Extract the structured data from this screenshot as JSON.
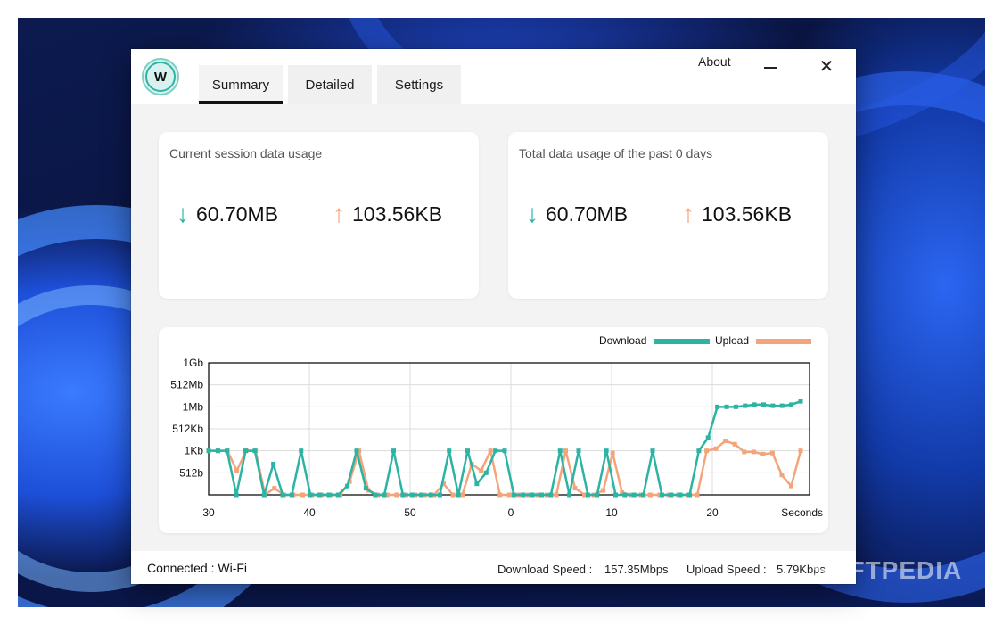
{
  "app": {
    "logo_letter": "W",
    "tabs": [
      {
        "label": "Summary",
        "active": true
      },
      {
        "label": "Detailed",
        "active": false
      },
      {
        "label": "Settings",
        "active": false
      }
    ],
    "about_label": "About",
    "minimize_icon": "minimize-icon",
    "close_icon": "close-icon",
    "close_glyph": "✕"
  },
  "cards": {
    "session": {
      "title": "Current session data usage",
      "download": "60.70MB",
      "upload": "103.56KB"
    },
    "total": {
      "title": "Total data usage of the past 0 days",
      "download": "60.70MB",
      "upload": "103.56KB"
    },
    "arrow_down_glyph": "↓",
    "arrow_up_glyph": "↑"
  },
  "chart_data": {
    "type": "line",
    "legend_placement": "top-right",
    "grid": true,
    "x_tick_labels": [
      "30",
      "40",
      "50",
      "0",
      "10",
      "20"
    ],
    "x_axis_label": "Seconds",
    "y_tick_labels": [
      "512b",
      "1Kb",
      "512Kb",
      "1Mb",
      "512Mb",
      "1Gb"
    ],
    "y_level_units": "0 = baseline (zero); 1 = 512b, 2 = 1Kb, 3 = 512Kb, 4 = 1Mb, 5 = 512Mb, 6 = 1Gb",
    "ylim": [
      0,
      6
    ],
    "series": [
      {
        "name": "Download",
        "color": "#2bb3a3",
        "values": [
          2,
          2,
          2,
          0,
          2,
          2,
          0,
          1.4,
          0,
          0,
          2,
          0,
          0,
          0,
          0,
          0.4,
          2,
          0.3,
          0,
          0,
          2,
          0,
          0,
          0,
          0,
          0,
          2,
          0,
          2,
          0.5,
          1,
          2,
          2,
          0,
          0,
          0,
          0,
          0,
          2,
          0,
          2,
          0,
          0,
          2,
          0,
          0,
          0,
          0,
          2,
          0,
          0,
          0,
          0,
          2,
          2.6,
          4,
          4,
          4,
          4.05,
          4.1,
          4.1,
          4.05,
          4.05,
          4.1,
          4.25
        ]
      },
      {
        "name": "Upload",
        "color": "#f4a47a",
        "values": [
          2,
          2,
          2,
          1.1,
          2,
          2,
          0,
          0.3,
          0,
          0,
          0,
          0,
          0,
          0,
          0,
          0.6,
          2,
          0.2,
          0,
          0,
          0,
          0,
          0,
          0,
          0,
          0.5,
          0,
          0,
          1.4,
          1.1,
          2,
          0,
          0,
          0,
          0,
          0,
          0,
          0,
          2,
          0.3,
          0,
          0,
          0.2,
          1.9,
          0.1,
          0,
          0,
          0,
          0,
          0,
          0,
          0,
          0,
          2,
          2.1,
          2.45,
          2.3,
          1.95,
          1.95,
          1.85,
          1.9,
          0.9,
          0.4,
          2
        ]
      }
    ]
  },
  "status": {
    "connection": "Connected : Wi-Fi",
    "download_speed_label": "Download Speed :",
    "download_speed_value": "157.35Mbps",
    "upload_speed_label": "Upload Speed :",
    "upload_speed_value": "5.79Kbps"
  },
  "watermark": "SOFTPEDIA"
}
